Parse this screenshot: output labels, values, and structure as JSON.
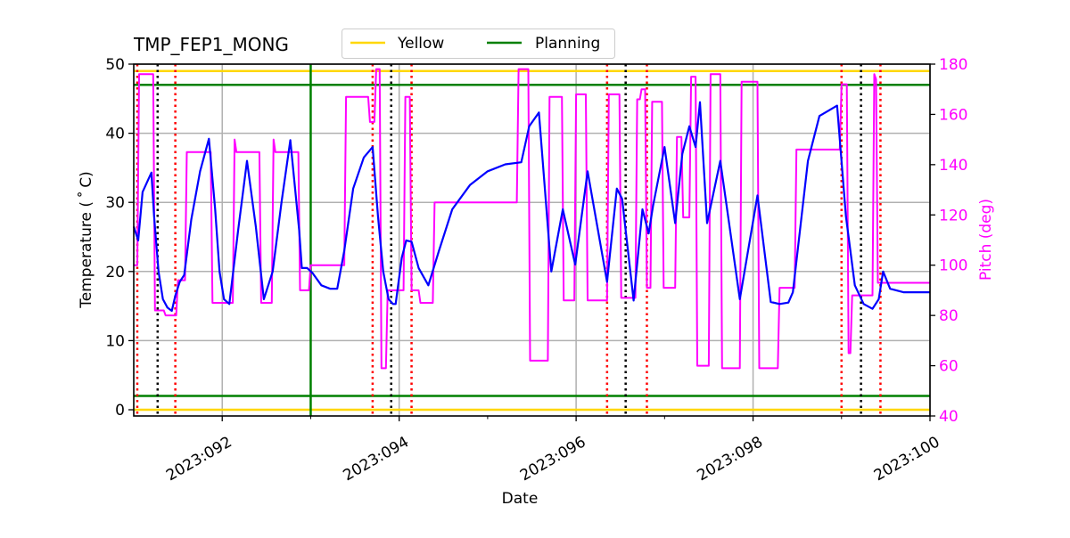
{
  "chart_data": {
    "type": "line",
    "title": "TMP_FEP1_MONG",
    "xlabel": "Date",
    "ylabel": "Temperature ($^\\circ$C)",
    "ylabel_display": "Temperature ( ˚ C)",
    "y2label": "Pitch (deg)",
    "xlim": [
      91.0,
      100.0
    ],
    "ylim": [
      -0.9,
      50
    ],
    "y2lim": [
      40,
      180
    ],
    "grid": true,
    "legend_position": "top-center-outside",
    "x_ticks": [
      {
        "value": 92,
        "label": "2023:092"
      },
      {
        "value": 94,
        "label": "2023:094"
      },
      {
        "value": 96,
        "label": "2023:096"
      },
      {
        "value": 98,
        "label": "2023:098"
      },
      {
        "value": 100,
        "label": "2023:100"
      }
    ],
    "x_minor_ticks": [
      93,
      95,
      97,
      99
    ],
    "y_ticks": [
      0,
      10,
      20,
      30,
      40,
      50
    ],
    "y2_ticks": [
      40,
      60,
      80,
      100,
      120,
      140,
      160,
      180
    ],
    "legend": [
      {
        "label": "Yellow",
        "color": "#ffd700"
      },
      {
        "label": "Planning",
        "color": "#008000"
      }
    ],
    "limit_lines": {
      "yellow": [
        0,
        49
      ],
      "planning": [
        2,
        47
      ]
    },
    "colors": {
      "temperature": "#0000ff",
      "pitch": "#ff00ff",
      "yellow": "#ffd700",
      "planning": "#008000",
      "red_markers": "#ff0000",
      "black_markers": "#000000",
      "grid": "#b0b0b0",
      "pitch_axis": "#ff00ff"
    },
    "vertical_markers": {
      "planning_line": [
        93.0
      ],
      "red_dotted": [
        91.04,
        91.47,
        93.7,
        94.14,
        96.35,
        96.8,
        99.0,
        99.44
      ],
      "black_dotted": [
        91.27,
        93.91,
        96.56,
        99.22
      ]
    },
    "series": [
      {
        "name": "TMP_FEP1_MONG",
        "axis": "left",
        "color": "#0000ff",
        "x": [
          91.0,
          91.05,
          91.1,
          91.2,
          91.23,
          91.28,
          91.33,
          91.38,
          91.43,
          91.47,
          91.52,
          91.57,
          91.65,
          91.75,
          91.85,
          91.92,
          91.97,
          92.02,
          92.08,
          92.18,
          92.28,
          92.38,
          92.47,
          92.57,
          92.67,
          92.77,
          92.87,
          92.9,
          92.96,
          93.02,
          93.12,
          93.22,
          93.3,
          93.38,
          93.48,
          93.6,
          93.7,
          93.76,
          93.82,
          93.88,
          93.93,
          93.96,
          94.03,
          94.08,
          94.14,
          94.22,
          94.33,
          94.45,
          94.6,
          94.8,
          95.0,
          95.2,
          95.38,
          95.47,
          95.58,
          95.72,
          95.85,
          95.99,
          96.13,
          96.35,
          96.46,
          96.52,
          96.65,
          96.75,
          96.82,
          96.87,
          97.0,
          97.12,
          97.2,
          97.28,
          97.35,
          97.4,
          97.48,
          97.63,
          97.85,
          98.05,
          98.2,
          98.3,
          98.4,
          98.45,
          98.62,
          98.75,
          98.95,
          99.05,
          99.15,
          99.25,
          99.35,
          99.42,
          99.47,
          99.55,
          99.7,
          100.0
        ],
        "values": [
          26.5,
          24.5,
          31.5,
          34.3,
          28.0,
          20.0,
          16.0,
          14.8,
          14.3,
          16.5,
          18.5,
          19.5,
          27.5,
          34.5,
          39.2,
          29.0,
          20.0,
          16.0,
          15.3,
          26.0,
          36.0,
          26.5,
          16.0,
          20.0,
          30.0,
          39.0,
          26.0,
          20.5,
          20.5,
          19.8,
          18.0,
          17.5,
          17.5,
          23.0,
          32.0,
          36.5,
          38.0,
          28.0,
          20.0,
          16.0,
          15.3,
          15.3,
          22.0,
          24.5,
          24.3,
          20.5,
          18.0,
          23.0,
          29.0,
          32.5,
          34.5,
          35.5,
          35.8,
          41.0,
          43.0,
          20.0,
          29.0,
          21.0,
          34.5,
          18.5,
          32.0,
          30.5,
          15.8,
          29.0,
          25.5,
          29.5,
          38.0,
          27.0,
          37.0,
          41.0,
          38.0,
          44.5,
          27.0,
          36.0,
          16.0,
          31.0,
          15.6,
          15.3,
          15.5,
          17.0,
          36.0,
          42.5,
          44.0,
          28.0,
          18.0,
          15.3,
          14.6,
          16.0,
          20.0,
          17.5,
          17.0,
          17.0
        ]
      },
      {
        "name": "Pitch",
        "axis": "right",
        "color": "#ff00ff",
        "step": true,
        "x": [
          91.0,
          91.04,
          91.06,
          91.22,
          91.24,
          91.34,
          91.36,
          91.48,
          91.5,
          91.58,
          91.6,
          91.87,
          91.89,
          91.9,
          92.12,
          92.14,
          92.16,
          92.42,
          92.44,
          92.45,
          92.56,
          92.58,
          92.6,
          92.86,
          92.88,
          92.98,
          93.0,
          93.38,
          93.4,
          93.65,
          93.67,
          93.72,
          93.74,
          93.78,
          93.8,
          93.85,
          93.87,
          94.05,
          94.07,
          94.12,
          94.14,
          94.22,
          94.24,
          94.38,
          94.4,
          95.33,
          95.35,
          95.46,
          95.48,
          95.68,
          95.7,
          95.84,
          95.86,
          95.98,
          96.0,
          96.11,
          96.13,
          96.35,
          96.37,
          96.49,
          96.51,
          96.67,
          96.69,
          96.72,
          96.74,
          96.78,
          96.8,
          96.84,
          96.86,
          96.97,
          96.99,
          97.12,
          97.14,
          97.19,
          97.21,
          97.28,
          97.3,
          97.35,
          97.37,
          97.5,
          97.52,
          97.63,
          97.65,
          97.85,
          97.87,
          98.05,
          98.07,
          98.28,
          98.3,
          98.47,
          98.49,
          98.58,
          98.62,
          98.98,
          99.0,
          99.06,
          99.08,
          99.1,
          99.12,
          99.35,
          99.37,
          99.39,
          99.41,
          100.0
        ],
        "values": [
          100,
          100,
          176,
          176,
          82,
          82,
          80,
          80,
          94,
          94,
          145,
          145,
          85,
          85,
          85,
          150,
          145,
          145,
          85,
          85,
          85,
          150,
          145,
          145,
          90,
          90,
          100,
          100,
          167,
          167,
          157,
          157,
          178,
          178,
          59,
          59,
          90,
          90,
          167,
          167,
          90,
          90,
          85,
          85,
          125,
          125,
          178,
          178,
          62,
          62,
          167,
          167,
          86,
          86,
          168,
          168,
          86,
          86,
          168,
          168,
          87,
          87,
          166,
          166,
          170,
          170,
          91,
          91,
          165,
          165,
          91,
          91,
          151,
          151,
          119,
          119,
          175,
          175,
          60,
          60,
          176,
          176,
          59,
          59,
          173,
          173,
          59,
          59,
          91,
          91,
          146,
          146,
          146,
          146,
          172,
          172,
          65,
          65,
          88,
          88,
          176,
          174,
          93,
          93
        ]
      }
    ]
  }
}
